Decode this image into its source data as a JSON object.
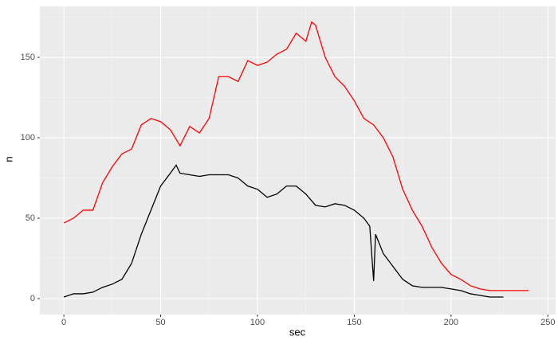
{
  "chart_data": {
    "type": "line",
    "x_label": "sec",
    "y_label": "n",
    "xlim": [
      -12.4,
      254
    ],
    "ylim": [
      -9.9,
      181.7
    ],
    "xticks": [
      0,
      50,
      100,
      150,
      200,
      250
    ],
    "yticks": [
      0,
      50,
      100,
      150
    ],
    "x_minor_ticks": [
      25,
      75,
      125,
      175,
      225
    ],
    "y_minor_ticks": [
      25,
      75,
      125,
      175
    ],
    "grid": true,
    "series": [
      {
        "color": "#ff0000",
        "x": [
          0,
          5,
          10,
          15,
          20,
          25,
          30,
          35,
          40,
          45,
          50,
          55,
          60,
          65,
          70,
          75,
          80,
          85,
          90,
          95,
          100,
          105,
          110,
          115,
          120,
          125,
          128,
          130,
          135,
          140,
          145,
          150,
          155,
          160,
          165,
          170,
          175,
          180,
          185,
          190,
          195,
          200,
          205,
          210,
          215,
          220,
          225,
          230,
          235,
          240
        ],
        "values": [
          47,
          50,
          55,
          55,
          72,
          82,
          90,
          93,
          108,
          112,
          110,
          105,
          95,
          107,
          103,
          112,
          138,
          138,
          135,
          148,
          145,
          147,
          152,
          155,
          165,
          160,
          172,
          170,
          150,
          138,
          132,
          123,
          112,
          108,
          100,
          88,
          68,
          55,
          45,
          32,
          22,
          15,
          12,
          8,
          6,
          5,
          5,
          5,
          5,
          5
        ]
      },
      {
        "color": "#000000",
        "x": [
          0,
          5,
          10,
          15,
          20,
          25,
          30,
          35,
          40,
          45,
          50,
          55,
          58,
          60,
          65,
          70,
          75,
          80,
          85,
          90,
          95,
          100,
          105,
          110,
          115,
          120,
          125,
          130,
          135,
          140,
          145,
          150,
          155,
          158,
          160,
          161,
          165,
          170,
          175,
          180,
          185,
          190,
          195,
          200,
          205,
          210,
          215,
          220,
          227
        ],
        "values": [
          1,
          3,
          3,
          4,
          7,
          9,
          12,
          22,
          40,
          55,
          70,
          78,
          83,
          78,
          77,
          76,
          77,
          77,
          77,
          75,
          70,
          68,
          63,
          65,
          70,
          70,
          65,
          58,
          57,
          59,
          58,
          55,
          50,
          45,
          11,
          40,
          28,
          20,
          12,
          8,
          7,
          7,
          7,
          6,
          5,
          3,
          2,
          1,
          1
        ]
      }
    ]
  }
}
